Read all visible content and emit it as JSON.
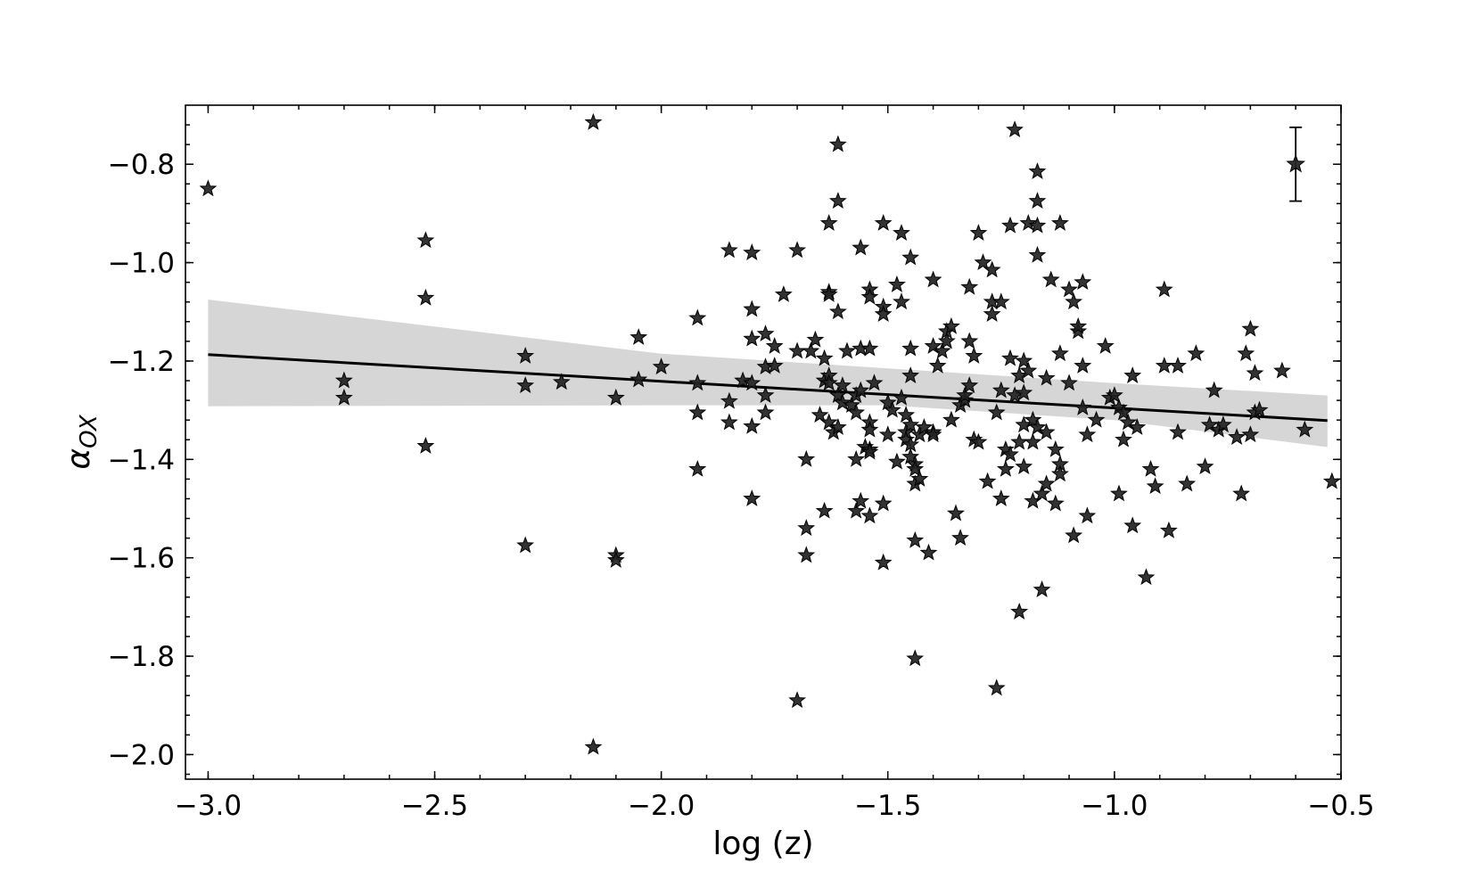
{
  "chart_data": {
    "type": "scatter",
    "title": "",
    "xlabel": "log (z)",
    "ylabel": "α_OX",
    "xlim": [
      -3.05,
      -0.5
    ],
    "ylim": [
      -2.05,
      -0.68
    ],
    "x_ticks": [
      -3.0,
      -2.5,
      -2.0,
      -1.5,
      -1.0,
      -0.5
    ],
    "x_tick_labels": [
      "−3.0",
      "−2.5",
      "−2.0",
      "−1.5",
      "−1.0",
      "−0.5"
    ],
    "y_ticks": [
      -0.8,
      -1.0,
      -1.2,
      -1.4,
      -1.6,
      -1.8,
      -2.0
    ],
    "y_tick_labels": [
      "−0.8",
      "−1.0",
      "−1.2",
      "−1.4",
      "−1.6",
      "−1.8",
      "−2.0"
    ],
    "marker": "star",
    "marker_color": "#222222",
    "band_color": "#d6d6d6",
    "fit_line": {
      "x": [
        -3.0,
        -0.53
      ],
      "y": [
        -1.187,
        -1.321
      ]
    },
    "confidence_band": {
      "x": [
        -3.0,
        -2.0,
        -1.5,
        -1.0,
        -0.53
      ],
      "upper": [
        -1.075,
        -1.185,
        -1.215,
        -1.245,
        -1.27
      ],
      "lower": [
        -1.292,
        -1.29,
        -1.29,
        -1.32,
        -1.375
      ]
    },
    "error_bar_sample": {
      "x": -0.6,
      "y": -0.8,
      "yerr": 0.075
    },
    "points": [
      [
        -3.0,
        -0.85
      ],
      [
        -2.7,
        -1.24
      ],
      [
        -2.7,
        -1.275
      ],
      [
        -2.52,
        -0.955
      ],
      [
        -2.52,
        -1.072
      ],
      [
        -2.52,
        -1.373
      ],
      [
        -2.3,
        -1.19
      ],
      [
        -2.3,
        -1.25
      ],
      [
        -2.3,
        -1.575
      ],
      [
        -2.22,
        -1.243
      ],
      [
        -2.15,
        -0.715
      ],
      [
        -2.15,
        -1.985
      ],
      [
        -2.1,
        -1.275
      ],
      [
        -2.1,
        -1.595
      ],
      [
        -2.1,
        -1.605
      ],
      [
        -2.05,
        -1.152
      ],
      [
        -2.05,
        -1.238
      ],
      [
        -2.0,
        -1.212
      ],
      [
        -1.92,
        -1.113
      ],
      [
        -1.92,
        -1.245
      ],
      [
        -1.92,
        -1.305
      ],
      [
        -1.92,
        -1.42
      ],
      [
        -1.85,
        -0.975
      ],
      [
        -1.85,
        -1.282
      ],
      [
        -1.85,
        -1.325
      ],
      [
        -1.82,
        -1.24
      ],
      [
        -1.8,
        -0.98
      ],
      [
        -1.8,
        -1.095
      ],
      [
        -1.8,
        -1.155
      ],
      [
        -1.8,
        -1.245
      ],
      [
        -1.8,
        -1.333
      ],
      [
        -1.8,
        -1.48
      ],
      [
        -1.77,
        -1.145
      ],
      [
        -1.77,
        -1.212
      ],
      [
        -1.77,
        -1.27
      ],
      [
        -1.77,
        -1.305
      ],
      [
        -1.75,
        -1.17
      ],
      [
        -1.75,
        -1.21
      ],
      [
        -1.73,
        -1.065
      ],
      [
        -1.7,
        -0.975
      ],
      [
        -1.7,
        -1.18
      ],
      [
        -1.7,
        -1.89
      ],
      [
        -1.68,
        -1.4
      ],
      [
        -1.68,
        -1.54
      ],
      [
        -1.68,
        -1.595
      ],
      [
        -1.67,
        -1.18
      ],
      [
        -1.66,
        -1.157
      ],
      [
        -1.65,
        -1.31
      ],
      [
        -1.64,
        -1.195
      ],
      [
        -1.64,
        -1.24
      ],
      [
        -1.64,
        -1.505
      ],
      [
        -1.63,
        -0.92
      ],
      [
        -1.63,
        -1.06
      ],
      [
        -1.63,
        -1.065
      ],
      [
        -1.63,
        -1.23
      ],
      [
        -1.63,
        -1.245
      ],
      [
        -1.63,
        -1.325
      ],
      [
        -1.62,
        -1.345
      ],
      [
        -1.61,
        -0.76
      ],
      [
        -1.61,
        -0.875
      ],
      [
        -1.61,
        -1.1
      ],
      [
        -1.61,
        -1.27
      ],
      [
        -1.61,
        -1.335
      ],
      [
        -1.6,
        -1.25
      ],
      [
        -1.6,
        -1.285
      ],
      [
        -1.59,
        -1.18
      ],
      [
        -1.58,
        -1.29
      ],
      [
        -1.57,
        -1.27
      ],
      [
        -1.57,
        -1.305
      ],
      [
        -1.57,
        -1.4
      ],
      [
        -1.57,
        -1.505
      ],
      [
        -1.56,
        -0.97
      ],
      [
        -1.56,
        -1.175
      ],
      [
        -1.56,
        -1.26
      ],
      [
        -1.56,
        -1.485
      ],
      [
        -1.55,
        -1.375
      ],
      [
        -1.54,
        -1.175
      ],
      [
        -1.54,
        -1.325
      ],
      [
        -1.54,
        -1.34
      ],
      [
        -1.54,
        -1.38
      ],
      [
        -1.54,
        -1.385
      ],
      [
        -1.54,
        -1.515
      ],
      [
        -1.54,
        -1.055
      ],
      [
        -1.54,
        -1.07
      ],
      [
        -1.53,
        -1.245
      ],
      [
        -1.51,
        -0.92
      ],
      [
        -1.51,
        -1.09
      ],
      [
        -1.51,
        -1.105
      ],
      [
        -1.51,
        -1.49
      ],
      [
        -1.51,
        -1.61
      ],
      [
        -1.5,
        -1.285
      ],
      [
        -1.5,
        -1.35
      ],
      [
        -1.49,
        -1.3
      ],
      [
        -1.48,
        -1.045
      ],
      [
        -1.48,
        -1.405
      ],
      [
        -1.47,
        -0.94
      ],
      [
        -1.47,
        -1.08
      ],
      [
        -1.47,
        -1.275
      ],
      [
        -1.46,
        -1.31
      ],
      [
        -1.46,
        -1.345
      ],
      [
        -1.46,
        -1.36
      ],
      [
        -1.45,
        -0.99
      ],
      [
        -1.45,
        -1.175
      ],
      [
        -1.45,
        -1.23
      ],
      [
        -1.45,
        -1.33
      ],
      [
        -1.45,
        -1.37
      ],
      [
        -1.45,
        -1.395
      ],
      [
        -1.44,
        -1.41
      ],
      [
        -1.44,
        -1.42
      ],
      [
        -1.44,
        -1.45
      ],
      [
        -1.44,
        -1.565
      ],
      [
        -1.44,
        -1.805
      ],
      [
        -1.43,
        -1.44
      ],
      [
        -1.43,
        -1.35
      ],
      [
        -1.42,
        -1.335
      ],
      [
        -1.41,
        -1.59
      ],
      [
        -1.4,
        -1.035
      ],
      [
        -1.4,
        -1.17
      ],
      [
        -1.4,
        -1.345
      ],
      [
        -1.4,
        -1.35
      ],
      [
        -1.39,
        -1.21
      ],
      [
        -1.38,
        -1.18
      ],
      [
        -1.37,
        -1.14
      ],
      [
        -1.37,
        -1.16
      ],
      [
        -1.36,
        -1.13
      ],
      [
        -1.36,
        -1.32
      ],
      [
        -1.35,
        -1.51
      ],
      [
        -1.34,
        -1.29
      ],
      [
        -1.34,
        -1.56
      ],
      [
        -1.33,
        -1.28
      ],
      [
        -1.33,
        -1.27
      ],
      [
        -1.32,
        -1.05
      ],
      [
        -1.32,
        -1.16
      ],
      [
        -1.32,
        -1.25
      ],
      [
        -1.31,
        -1.19
      ],
      [
        -1.31,
        -1.36
      ],
      [
        -1.3,
        -1.365
      ],
      [
        -1.3,
        -0.94
      ],
      [
        -1.29,
        -1.0
      ],
      [
        -1.28,
        -1.445
      ],
      [
        -1.27,
        -1.015
      ],
      [
        -1.27,
        -1.08
      ],
      [
        -1.27,
        -1.105
      ],
      [
        -1.26,
        -1.305
      ],
      [
        -1.26,
        -1.865
      ],
      [
        -1.25,
        -1.08
      ],
      [
        -1.25,
        -1.26
      ],
      [
        -1.25,
        -1.48
      ],
      [
        -1.24,
        -1.38
      ],
      [
        -1.24,
        -1.42
      ],
      [
        -1.23,
        -0.925
      ],
      [
        -1.23,
        -1.195
      ],
      [
        -1.23,
        -1.39
      ],
      [
        -1.22,
        -0.73
      ],
      [
        -1.22,
        -1.27
      ],
      [
        -1.21,
        -1.23
      ],
      [
        -1.21,
        -1.365
      ],
      [
        -1.21,
        -1.71
      ],
      [
        -1.2,
        -1.33
      ],
      [
        -1.2,
        -1.415
      ],
      [
        -1.2,
        -1.265
      ],
      [
        -1.2,
        -1.2
      ],
      [
        -1.19,
        -1.22
      ],
      [
        -1.19,
        -0.92
      ],
      [
        -1.18,
        -1.32
      ],
      [
        -1.18,
        -1.365
      ],
      [
        -1.18,
        -1.485
      ],
      [
        -1.17,
        -0.815
      ],
      [
        -1.17,
        -0.875
      ],
      [
        -1.17,
        -0.925
      ],
      [
        -1.17,
        -0.985
      ],
      [
        -1.17,
        -1.335
      ],
      [
        -1.16,
        -1.665
      ],
      [
        -1.16,
        -1.47
      ],
      [
        -1.15,
        -1.235
      ],
      [
        -1.15,
        -1.345
      ],
      [
        -1.15,
        -1.45
      ],
      [
        -1.14,
        -1.035
      ],
      [
        -1.13,
        -1.38
      ],
      [
        -1.13,
        -1.49
      ],
      [
        -1.12,
        -0.92
      ],
      [
        -1.12,
        -1.185
      ],
      [
        -1.12,
        -1.41
      ],
      [
        -1.12,
        -1.43
      ],
      [
        -1.1,
        -1.245
      ],
      [
        -1.1,
        -1.055
      ],
      [
        -1.09,
        -1.08
      ],
      [
        -1.09,
        -1.555
      ],
      [
        -1.08,
        -1.14
      ],
      [
        -1.08,
        -1.13
      ],
      [
        -1.07,
        -1.04
      ],
      [
        -1.07,
        -1.295
      ],
      [
        -1.07,
        -1.21
      ],
      [
        -1.06,
        -1.35
      ],
      [
        -1.06,
        -1.515
      ],
      [
        -1.04,
        -1.32
      ],
      [
        -1.02,
        -1.17
      ],
      [
        -1.01,
        -1.275
      ],
      [
        -1.0,
        -1.27
      ],
      [
        -0.99,
        -1.295
      ],
      [
        -0.99,
        -1.47
      ],
      [
        -0.98,
        -1.36
      ],
      [
        -0.98,
        -1.305
      ],
      [
        -0.97,
        -1.325
      ],
      [
        -0.96,
        -1.23
      ],
      [
        -0.96,
        -1.535
      ],
      [
        -0.95,
        -1.335
      ],
      [
        -0.93,
        -1.64
      ],
      [
        -0.92,
        -1.42
      ],
      [
        -0.91,
        -1.455
      ],
      [
        -0.89,
        -1.055
      ],
      [
        -0.89,
        -1.21
      ],
      [
        -0.88,
        -1.545
      ],
      [
        -0.86,
        -1.21
      ],
      [
        -0.86,
        -1.345
      ],
      [
        -0.84,
        -1.45
      ],
      [
        -0.82,
        -1.185
      ],
      [
        -0.8,
        -1.415
      ],
      [
        -0.79,
        -1.33
      ],
      [
        -0.78,
        -1.26
      ],
      [
        -0.77,
        -1.34
      ],
      [
        -0.76,
        -1.33
      ],
      [
        -0.73,
        -1.355
      ],
      [
        -0.72,
        -1.47
      ],
      [
        -0.71,
        -1.185
      ],
      [
        -0.7,
        -1.135
      ],
      [
        -0.7,
        -1.35
      ],
      [
        -0.69,
        -1.225
      ],
      [
        -0.69,
        -1.305
      ],
      [
        -0.68,
        -1.3
      ],
      [
        -0.63,
        -1.22
      ],
      [
        -0.58,
        -1.34
      ],
      [
        -0.52,
        -1.445
      ]
    ]
  }
}
